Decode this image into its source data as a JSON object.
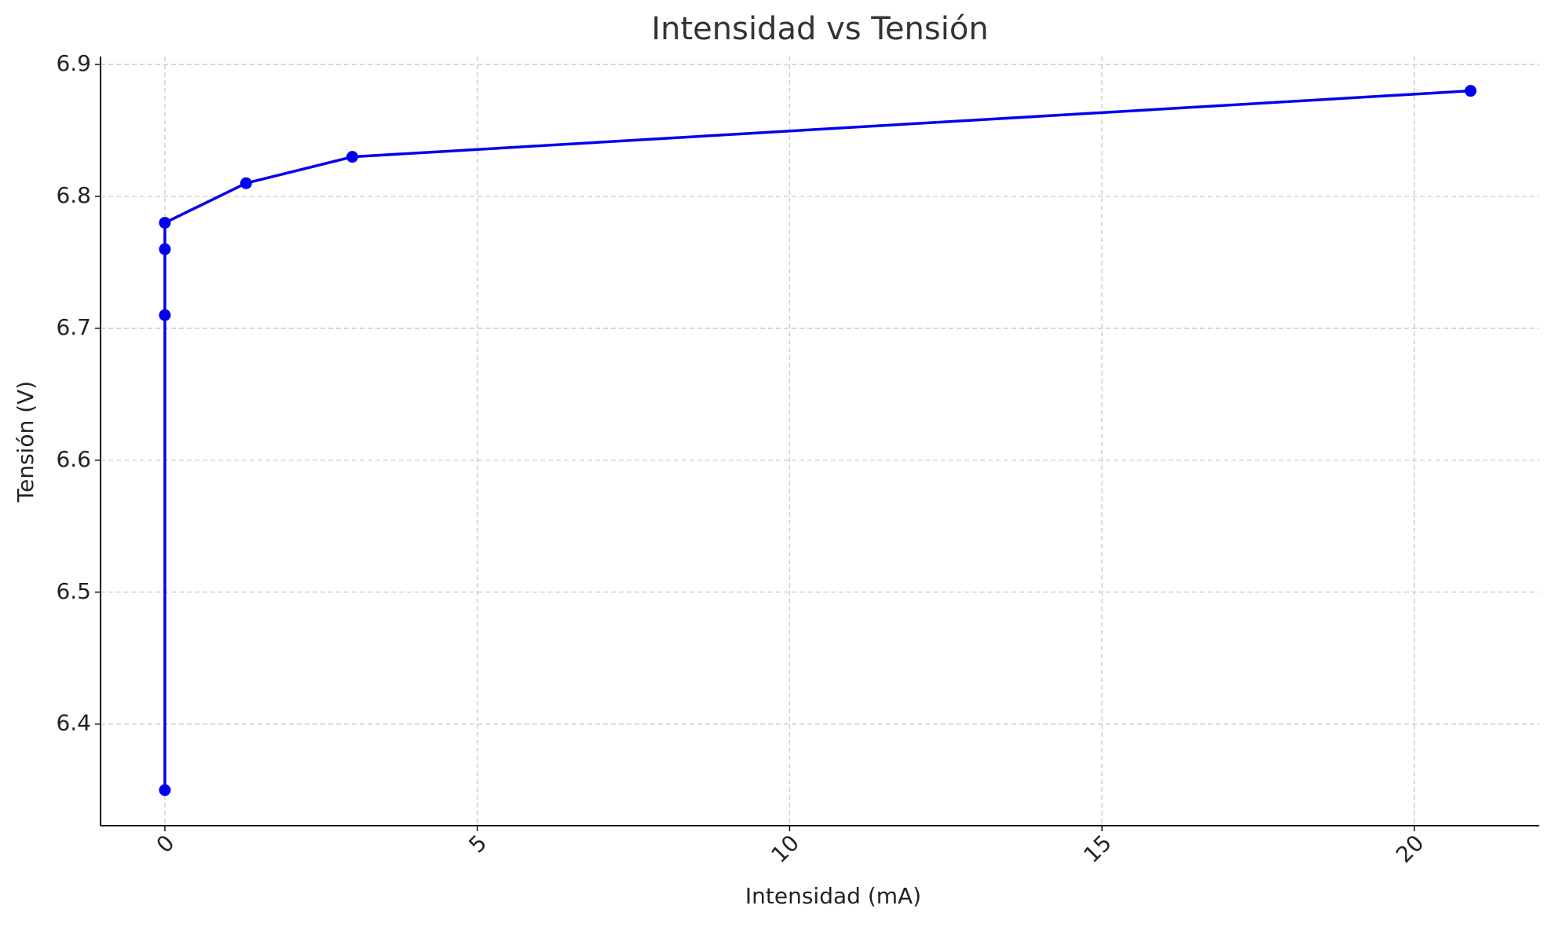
{
  "chart_data": {
    "type": "line",
    "title": "Intensidad vs Tensión",
    "x_label": "Intensidad (mA)",
    "y_label": "Tensión (V)",
    "x": [
      0,
      0,
      0,
      0,
      1.3,
      3.0,
      20.9
    ],
    "series": [
      {
        "name": "Tensión",
        "color": "#0000ee",
        "values": [
          6.35,
          6.71,
          6.76,
          6.78,
          6.81,
          6.83,
          6.88
        ]
      }
    ],
    "xlim": [
      -1.03,
      22.0
    ],
    "xticks": [
      0,
      5,
      10,
      15,
      20
    ],
    "ylim": [
      6.323,
      6.906
    ],
    "yticks": [
      6.4,
      6.5,
      6.6,
      6.7,
      6.8,
      6.9
    ],
    "grid": true
  }
}
